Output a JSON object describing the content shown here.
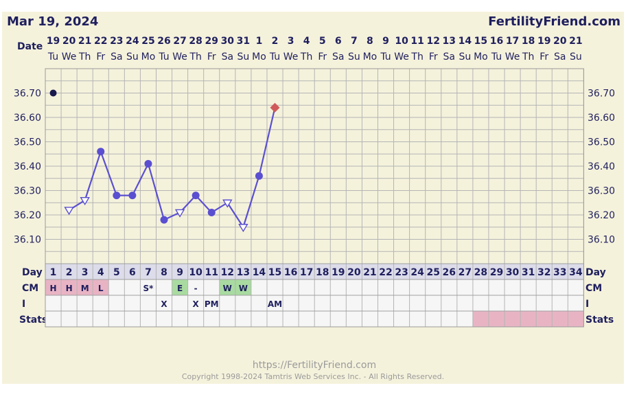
{
  "header": {
    "date": "Mar 19, 2024",
    "site": "FertilityFriend.com"
  },
  "labels": {
    "date": "Date",
    "day": "Day",
    "cm": "CM",
    "i": "I",
    "stats": "Stats"
  },
  "footer": {
    "url": "https://FertilityFriend.com",
    "copyright": "Copyright 1998-2024 Tamtris Web Services Inc. - All Rights Reserved."
  },
  "colors": {
    "background": "#f5f2dc",
    "line": "#5a4fd0",
    "text": "#1f1f5e",
    "pink": "#e8b4c4",
    "green": "#a9dba0",
    "diamond": "#d05a5a"
  },
  "chart_data": {
    "type": "line",
    "dates": [
      "19",
      "20",
      "21",
      "22",
      "23",
      "24",
      "25",
      "26",
      "27",
      "28",
      "29",
      "30",
      "31",
      "1",
      "2",
      "3",
      "4",
      "5",
      "6",
      "7",
      "8",
      "9",
      "10",
      "11",
      "12",
      "13",
      "14",
      "15",
      "16",
      "17",
      "18",
      "19",
      "20",
      "21"
    ],
    "weekdays": [
      "Tu",
      "We",
      "Th",
      "Fr",
      "Sa",
      "Su",
      "Mo",
      "Tu",
      "We",
      "Th",
      "Fr",
      "Sa",
      "Su",
      "Mo",
      "Tu",
      "We",
      "Th",
      "Fr",
      "Sa",
      "Su",
      "Mo",
      "Tu",
      "We",
      "Th",
      "Fr",
      "Sa",
      "Su",
      "Mo",
      "Tu",
      "We",
      "Th",
      "Fr",
      "Sa",
      "Su"
    ],
    "cycle_days": [
      "1",
      "2",
      "3",
      "4",
      "5",
      "6",
      "7",
      "8",
      "9",
      "10",
      "11",
      "12",
      "13",
      "14",
      "15",
      "16",
      "17",
      "18",
      "19",
      "20",
      "21",
      "22",
      "23",
      "24",
      "25",
      "26",
      "27",
      "28",
      "29",
      "30",
      "31",
      "32",
      "33",
      "34"
    ],
    "y_ticks": [
      "36.70",
      "36.60",
      "36.50",
      "36.40",
      "36.30",
      "36.20",
      "36.10"
    ],
    "ylim": [
      36.0,
      36.8
    ],
    "temperatures": [
      {
        "day": 1,
        "temp": 36.7,
        "marker": "dot",
        "connected": false
      },
      {
        "day": 2,
        "temp": 36.22,
        "marker": "open-triangle",
        "connected": true
      },
      {
        "day": 3,
        "temp": 36.26,
        "marker": "open-triangle",
        "connected": true
      },
      {
        "day": 4,
        "temp": 36.46,
        "marker": "circle",
        "connected": true
      },
      {
        "day": 5,
        "temp": 36.28,
        "marker": "circle",
        "connected": true
      },
      {
        "day": 6,
        "temp": 36.28,
        "marker": "circle",
        "connected": true
      },
      {
        "day": 7,
        "temp": 36.41,
        "marker": "circle",
        "connected": true
      },
      {
        "day": 8,
        "temp": 36.18,
        "marker": "circle",
        "connected": true
      },
      {
        "day": 9,
        "temp": 36.21,
        "marker": "open-triangle",
        "connected": true
      },
      {
        "day": 10,
        "temp": 36.28,
        "marker": "circle",
        "connected": true
      },
      {
        "day": 11,
        "temp": 36.21,
        "marker": "circle",
        "connected": true
      },
      {
        "day": 12,
        "temp": 36.25,
        "marker": "open-triangle",
        "connected": true
      },
      {
        "day": 13,
        "temp": 36.15,
        "marker": "open-triangle",
        "connected": true
      },
      {
        "day": 14,
        "temp": 36.36,
        "marker": "circle",
        "connected": true
      },
      {
        "day": 15,
        "temp": 36.64,
        "marker": "diamond",
        "connected": true
      }
    ],
    "cm_row": [
      {
        "day": 1,
        "text": "H",
        "fill": "pink"
      },
      {
        "day": 2,
        "text": "H",
        "fill": "pink"
      },
      {
        "day": 3,
        "text": "M",
        "fill": "pink"
      },
      {
        "day": 4,
        "text": "L",
        "fill": "pink"
      },
      {
        "day": 7,
        "text": "S*",
        "fill": ""
      },
      {
        "day": 9,
        "text": "E",
        "fill": "green"
      },
      {
        "day": 10,
        "text": "-",
        "fill": ""
      },
      {
        "day": 12,
        "text": "W",
        "fill": "green"
      },
      {
        "day": 13,
        "text": "W",
        "fill": "green"
      }
    ],
    "i_row": [
      {
        "day": 8,
        "text": "X"
      },
      {
        "day": 10,
        "text": "X"
      },
      {
        "day": 11,
        "text": "PM"
      },
      {
        "day": 15,
        "text": "AM"
      }
    ],
    "stats_highlight_days": [
      28,
      29,
      30,
      31,
      32,
      33,
      34
    ],
    "grid": true
  }
}
